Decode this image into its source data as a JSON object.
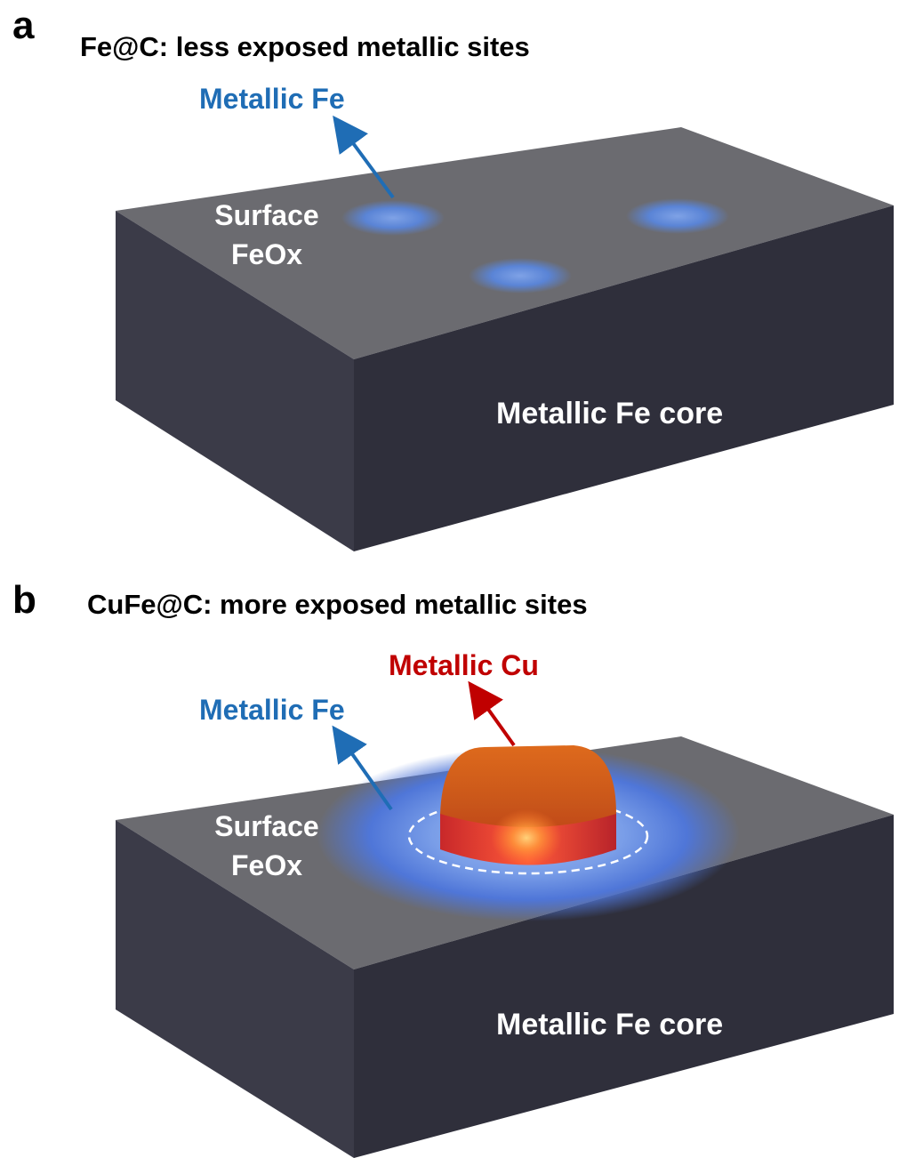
{
  "panel_a": {
    "letter": "a",
    "title": "Fe@C: less exposed metallic sites",
    "metallic_fe_label": "Metallic Fe",
    "surface_label_line1": "Surface",
    "surface_label_line2": "FeOx",
    "core_label": "Metallic Fe core",
    "site_count": 3
  },
  "panel_b": {
    "letter": "b",
    "title": "CuFe@C: more exposed metallic sites",
    "metallic_cu_label": "Metallic Cu",
    "metallic_fe_label": "Metallic Fe",
    "surface_label_line1": "Surface",
    "surface_label_line2": "FeOx",
    "core_label": "Metallic Fe core"
  },
  "colors": {
    "fe_blue": "#1f6db5",
    "cu_red": "#c00000",
    "block_top": "#6b6b70",
    "block_front": "#2f2f3b",
    "block_side": "#3b3b48",
    "cu_particle": "#cc5a14"
  }
}
